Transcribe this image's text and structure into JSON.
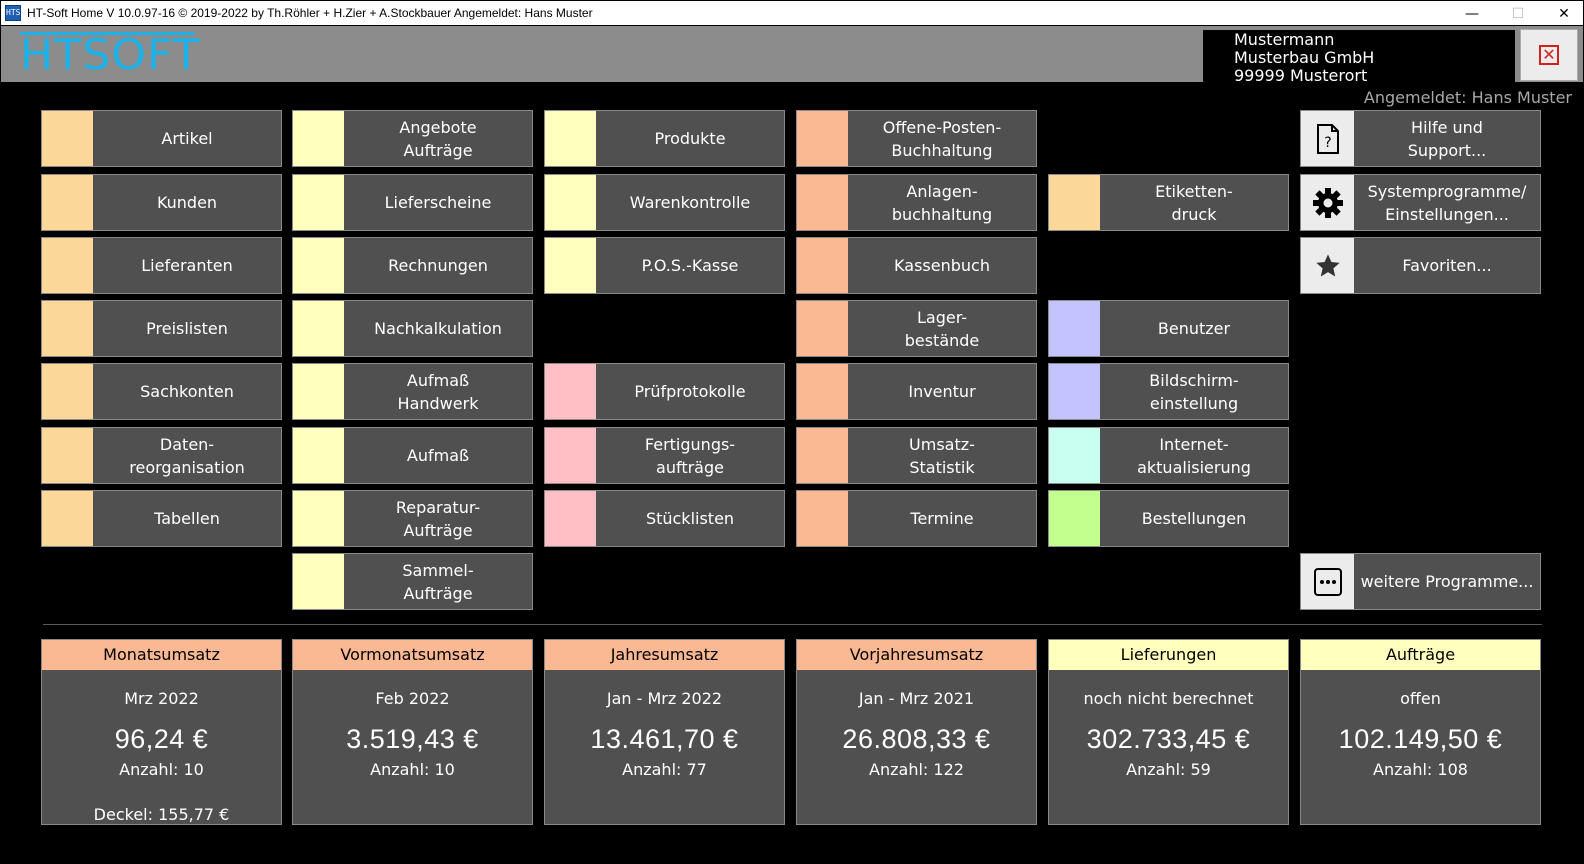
{
  "window": {
    "title": "HT-Soft Home V 10.0.97-16    © 2019-2022 by Th.Röhler + H.Zier + A.Stockbauer   Angemeldet: Hans Muster",
    "app_icon_text": "HTS",
    "minimize": "—",
    "maximize": "☐",
    "close": "✕"
  },
  "header": {
    "logo": "HTSOFT",
    "company_line1": "Mustermann",
    "company_line2": "Musterbau GmbH",
    "company_line3": "99999 Musterort",
    "close_glyph": "✕",
    "logged_in": "Angemeldet: Hans Muster"
  },
  "colors": {
    "orange_light": "#fcd79a",
    "yellow_light": "#ffffbe",
    "salmon": "#fbb993",
    "pink": "#ffbfc4",
    "lavender": "#c3c3ff",
    "mint": "#c8fff0",
    "green": "#c3ff8e",
    "header_bg": "#8c8c8c",
    "tile_bg": "#505050",
    "logo_blue": "#1ab2e8"
  },
  "col1": {
    "artikel": "Artikel",
    "kunden": "Kunden",
    "lieferanten": "Lieferanten",
    "preislisten": "Preislisten",
    "sachkonten": "Sachkonten",
    "daten": "Daten-\nreorganisation",
    "tabellen": "Tabellen"
  },
  "col2": {
    "angebote": "Angebote\nAufträge",
    "lieferscheine": "Lieferscheine",
    "rechnungen": "Rechnungen",
    "nachkalkulation": "Nachkalkulation",
    "aufmass_handwerk": "Aufmaß\nHandwerk",
    "aufmass": "Aufmaß",
    "reparatur": "Reparatur-\nAufträge",
    "sammel": "Sammel-\nAufträge"
  },
  "col3": {
    "produkte": "Produkte",
    "warenkontrolle": "Warenkontrolle",
    "pos": "P.O.S.-Kasse",
    "pruefprotokolle": "Prüfprotokolle",
    "fertigung": "Fertigungs-\naufträge",
    "stuecklisten": "Stücklisten"
  },
  "col4": {
    "opos": "Offene-Posten-\nBuchhaltung",
    "anlagen": "Anlagen-\nbuchhaltung",
    "kassenbuch": "Kassenbuch",
    "lager": "Lager-\nbestände",
    "inventur": "Inventur",
    "umsatz": "Umsatz-\nStatistik",
    "termine": "Termine"
  },
  "col5": {
    "etiketten": "Etiketten-\ndruck",
    "benutzer": "Benutzer",
    "bildschirm": "Bildschirm-\neinstellung",
    "internet": "Internet-\naktualisierung",
    "bestellungen": "Bestellungen"
  },
  "col6": {
    "hilfe": "Hilfe und\nSupport...",
    "system": "Systemprogramme/\nEinstellungen...",
    "favoriten": "Favoriten...",
    "weitere": "weitere Programme..."
  },
  "stats": [
    {
      "head": "Monatsumsatz",
      "period": "Mrz 2022",
      "amount": "96,24  €",
      "count": "Anzahl: 10",
      "deckel": "Deckel: 155,77  €"
    },
    {
      "head": "Vormonatsumsatz",
      "period": "Feb 2022",
      "amount": "3.519,43  €",
      "count": "Anzahl: 10"
    },
    {
      "head": "Jahresumsatz",
      "period": "Jan - Mrz 2022",
      "amount": "13.461,70  €",
      "count": "Anzahl: 77"
    },
    {
      "head": "Vorjahresumsatz",
      "period": "Jan - Mrz 2021",
      "amount": "26.808,33  €",
      "count": "Anzahl: 122"
    },
    {
      "head": "Lieferungen",
      "period": "noch nicht berechnet",
      "amount": "302.733,45  €",
      "count": "Anzahl: 59"
    },
    {
      "head": "Aufträge",
      "period": "offen",
      "amount": "102.149,50  €",
      "count": "Anzahl: 108"
    }
  ]
}
